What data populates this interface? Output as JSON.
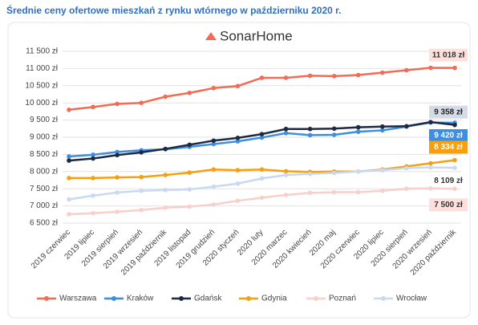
{
  "chart_data": {
    "type": "line",
    "title": "Średnie ceny ofertowe mieszkań z rynku wtórnego w październiku 2020 r.",
    "logo": "SonarHome",
    "categories": [
      "2019 czerwiec",
      "2019 lipiec",
      "2019 sierpień",
      "2019 wrzesień",
      "2019 październik",
      "2019 listopad",
      "2019 grudzień",
      "2020 styczeń",
      "2020 luty",
      "2020 marzec",
      "2020 kwiecień",
      "2020 maj",
      "2020 czerwiec",
      "2020 lipiec",
      "2020 sierpień",
      "2020 wrzesień",
      "2020 październik"
    ],
    "ylim": [
      6500,
      11500
    ],
    "yticks": [
      {
        "value": 6500,
        "label": "6 500 zł"
      },
      {
        "value": 7000,
        "label": "7 000 zł"
      },
      {
        "value": 7500,
        "label": "7 500 zł"
      },
      {
        "value": 8000,
        "label": "8 000 zł"
      },
      {
        "value": 8500,
        "label": "8 500 zł"
      },
      {
        "value": 9000,
        "label": "9 000 zł"
      },
      {
        "value": 9500,
        "label": "9 500 zł"
      },
      {
        "value": 10000,
        "label": "10 000 zł"
      },
      {
        "value": 10500,
        "label": "10 500 zł"
      },
      {
        "value": 11000,
        "label": "11 000 zł"
      },
      {
        "value": 11500,
        "label": "11 500 zł"
      }
    ],
    "grid": true,
    "series": [
      {
        "name": "Warszawa",
        "color": "#f26b54",
        "values": [
          9800,
          9880,
          9970,
          10000,
          10180,
          10290,
          10430,
          10490,
          10730,
          10730,
          10790,
          10780,
          10810,
          10880,
          10950,
          11020,
          11018
        ],
        "value_labels": [
          null,
          null,
          null,
          null,
          null,
          null,
          null,
          null,
          null,
          null,
          null,
          null,
          null,
          null,
          null,
          null,
          "11 018 zł"
        ]
      },
      {
        "name": "Kraków",
        "color": "#3d8ee0",
        "values": [
          8440,
          8490,
          8570,
          8620,
          8650,
          8720,
          8800,
          8880,
          8990,
          9120,
          9060,
          9070,
          9160,
          9200,
          9310,
          9430,
          9420
        ],
        "value_labels": [
          null,
          null,
          null,
          null,
          null,
          null,
          null,
          null,
          null,
          null,
          null,
          null,
          null,
          null,
          null,
          null,
          "9 420 zł"
        ]
      },
      {
        "name": "Gdańsk",
        "color": "#1c2a44",
        "values": [
          8320,
          8380,
          8480,
          8560,
          8660,
          8780,
          8900,
          8980,
          9090,
          9240,
          9240,
          9250,
          9290,
          9310,
          9320,
          9440,
          9358
        ],
        "value_labels": [
          null,
          null,
          null,
          null,
          null,
          null,
          null,
          null,
          null,
          null,
          null,
          null,
          null,
          null,
          null,
          null,
          "9 358 zł"
        ]
      },
      {
        "name": "Gdynia",
        "color": "#f5a011",
        "values": [
          7810,
          7810,
          7830,
          7840,
          7900,
          7970,
          8060,
          8040,
          8060,
          8010,
          7990,
          8000,
          8000,
          8060,
          8150,
          8240,
          8334
        ],
        "value_labels": [
          null,
          null,
          null,
          null,
          null,
          null,
          null,
          null,
          null,
          null,
          null,
          null,
          null,
          null,
          null,
          null,
          "8 334 zł"
        ]
      },
      {
        "name": "Poznań",
        "color": "#f9cfcb",
        "values": [
          6760,
          6790,
          6830,
          6880,
          6950,
          6980,
          7040,
          7150,
          7240,
          7320,
          7380,
          7400,
          7400,
          7440,
          7500,
          7510,
          7500
        ],
        "value_labels": [
          null,
          null,
          null,
          null,
          null,
          null,
          null,
          null,
          null,
          null,
          null,
          null,
          null,
          null,
          null,
          null,
          "7 500 zł"
        ]
      },
      {
        "name": "Wrocław",
        "color": "#c9d9f2",
        "values": [
          7190,
          7300,
          7390,
          7440,
          7460,
          7480,
          7560,
          7650,
          7800,
          7900,
          7930,
          7960,
          8000,
          8040,
          8100,
          8120,
          8109
        ],
        "value_labels": [
          null,
          null,
          null,
          null,
          null,
          null,
          null,
          null,
          null,
          null,
          null,
          null,
          null,
          null,
          null,
          null,
          "8 109 zł"
        ]
      }
    ]
  }
}
